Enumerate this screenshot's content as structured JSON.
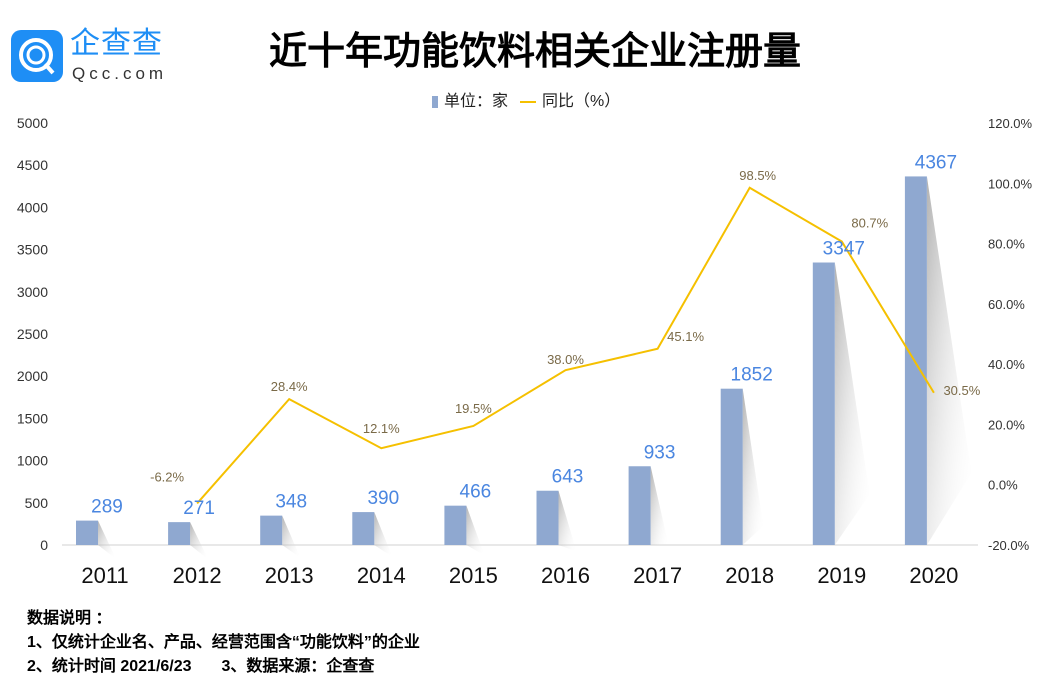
{
  "logo": {
    "cn": "企查查",
    "en": "Qcc.com"
  },
  "legend": {
    "bar": "单位：家",
    "line": "同比（%）"
  },
  "notes": {
    "heading": "数据说明 ：",
    "line1": "1、仅统计企业名、产品、经营范围含“功能饮料”的企业",
    "line2": "2、统计时间  2021/6/23",
    "line3": "3、数据来源：企查查"
  },
  "colors": {
    "bar": "#8fa8d0",
    "line": "#f5c000",
    "bar_label": "#4a86e0",
    "line_label": "#7a6a48"
  },
  "chart_data": {
    "type": "bar+line",
    "title": "近十年功能饮料相关企业注册量",
    "categories": [
      "2011",
      "2012",
      "2013",
      "2014",
      "2015",
      "2016",
      "2017",
      "2018",
      "2019",
      "2020"
    ],
    "series": [
      {
        "name": "单位：家",
        "type": "bar",
        "axis": "left",
        "values": [
          289,
          271,
          348,
          390,
          466,
          643,
          933,
          1852,
          3347,
          4367
        ],
        "labels": [
          "289",
          "271",
          "348",
          "390",
          "466",
          "643",
          "933",
          "1852",
          "3347",
          "4367"
        ]
      },
      {
        "name": "同比（%）",
        "type": "line",
        "axis": "right",
        "values": [
          null,
          -6.2,
          28.4,
          12.1,
          19.5,
          38.0,
          45.1,
          98.5,
          80.7,
          30.5
        ],
        "labels": [
          "",
          "-6.2%",
          "28.4%",
          "12.1%",
          "19.5%",
          "38.0%",
          "45.1%",
          "98.5%",
          "80.7%",
          "30.5%"
        ]
      }
    ],
    "left_axis": {
      "ylim": [
        0,
        5000
      ],
      "ticks": [
        "0",
        "500",
        "1000",
        "1500",
        "2000",
        "2500",
        "3000",
        "3500",
        "4000",
        "4500",
        "5000"
      ]
    },
    "right_axis": {
      "ylim": [
        -20,
        120
      ],
      "ticks": [
        "-20.0%",
        "0.0%",
        "20.0%",
        "40.0%",
        "60.0%",
        "80.0%",
        "100.0%",
        "120.0%"
      ]
    },
    "grid": false,
    "legend_position": "top"
  }
}
